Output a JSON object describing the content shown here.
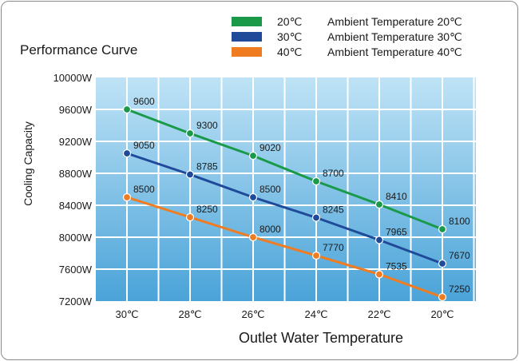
{
  "chart_data": {
    "type": "line",
    "title": "Performance Curve",
    "xlabel": "Outlet Water Temperature",
    "ylabel": "Cooling Capacity",
    "categories": [
      "30℃",
      "28℃",
      "26℃",
      "24℃",
      "22℃",
      "20℃"
    ],
    "yticks": [
      "10000W",
      "9600W",
      "9200W",
      "8800W",
      "8400W",
      "8000W",
      "7600W",
      "7200W"
    ],
    "ylim": [
      7200,
      10000
    ],
    "grid": true,
    "legend_position": "top-right",
    "series": [
      {
        "name": "Ambient Temperature 20℃",
        "legend_key": "20℃",
        "color": "#1a9a48",
        "values": [
          9600,
          9300,
          9020,
          8700,
          8410,
          8100
        ]
      },
      {
        "name": "Ambient Temperature 30℃",
        "legend_key": "30℃",
        "color": "#1f4a9a",
        "values": [
          9050,
          8785,
          8500,
          8245,
          7965,
          7670
        ]
      },
      {
        "name": "Ambient Temperature 40℃",
        "legend_key": "40℃",
        "color": "#f07c22",
        "values": [
          8500,
          8250,
          8000,
          7770,
          7535,
          7250
        ]
      }
    ],
    "plot_background": [
      "#bfe3f6",
      "#4aa3d8"
    ]
  }
}
